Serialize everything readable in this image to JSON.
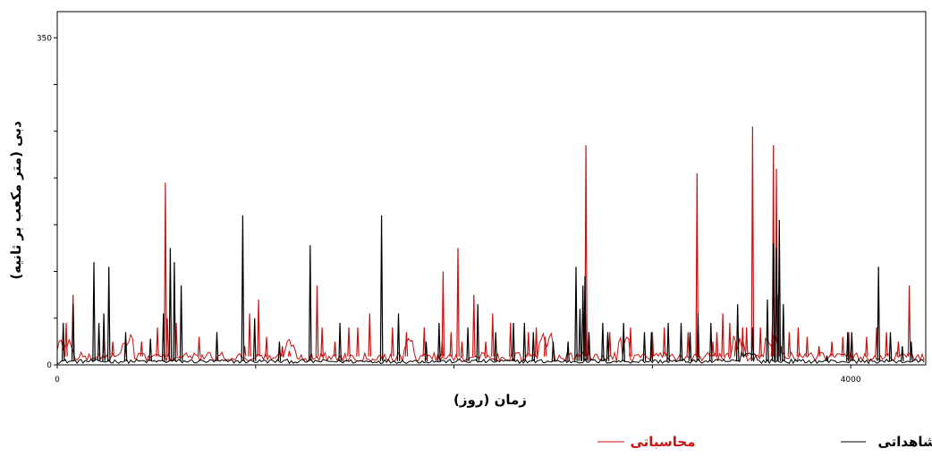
{
  "chart_data": {
    "type": "line",
    "xlabel": "زمان (روز)",
    "ylabel": "دبی (متر مکعب بر ثانیه)",
    "xlim": [
      0,
      4000
    ],
    "ylim": [
      0,
      378
    ],
    "x_tick_values": [
      0,
      1000,
      2000,
      3000,
      4000
    ],
    "x_tick_labels": [
      "0",
      "",
      "",
      "",
      "4000"
    ],
    "y_tick_values": [
      0,
      50,
      100,
      150,
      200,
      250,
      300,
      350
    ],
    "y_tick_labels": [
      "0",
      "",
      "",
      "",
      "",
      "",
      "",
      "350"
    ],
    "grid": false,
    "legend_position": "bottom",
    "series": [
      {
        "name": "مشاهداتی",
        "color": "#000000",
        "baseline": 4,
        "peaks": [
          [
            30,
            45
          ],
          [
            80,
            65
          ],
          [
            185,
            110
          ],
          [
            210,
            45
          ],
          [
            235,
            55
          ],
          [
            260,
            105
          ],
          [
            345,
            35
          ],
          [
            470,
            28
          ],
          [
            535,
            55
          ],
          [
            570,
            125
          ],
          [
            590,
            110
          ],
          [
            625,
            85
          ],
          [
            805,
            35
          ],
          [
            935,
            160
          ],
          [
            995,
            50
          ],
          [
            1120,
            25
          ],
          [
            1275,
            128
          ],
          [
            1425,
            45
          ],
          [
            1635,
            160
          ],
          [
            1720,
            55
          ],
          [
            1860,
            25
          ],
          [
            1925,
            45
          ],
          [
            2070,
            40
          ],
          [
            2120,
            65
          ],
          [
            2210,
            35
          ],
          [
            2300,
            45
          ],
          [
            2355,
            45
          ],
          [
            2400,
            35
          ],
          [
            2500,
            25
          ],
          [
            2575,
            25
          ],
          [
            2615,
            105
          ],
          [
            2635,
            60
          ],
          [
            2650,
            85
          ],
          [
            2660,
            95
          ],
          [
            2680,
            35
          ],
          [
            2750,
            45
          ],
          [
            2775,
            35
          ],
          [
            2855,
            45
          ],
          [
            2960,
            35
          ],
          [
            2995,
            35
          ],
          [
            3080,
            45
          ],
          [
            3145,
            45
          ],
          [
            3190,
            35
          ],
          [
            3230,
            55
          ],
          [
            3295,
            45
          ],
          [
            3430,
            65
          ],
          [
            3505,
            40
          ],
          [
            3580,
            70
          ],
          [
            3610,
            130
          ],
          [
            3625,
            125
          ],
          [
            3640,
            155
          ],
          [
            3660,
            65
          ],
          [
            3880,
            10
          ],
          [
            3985,
            35
          ],
          [
            4005,
            35
          ],
          [
            4140,
            105
          ],
          [
            4200,
            35
          ],
          [
            4260,
            20
          ],
          [
            4305,
            25
          ]
        ],
        "clusters": [
          [
            3450,
            3520,
            10
          ]
        ]
      },
      {
        "name": "محاسباتی",
        "color": "#cc1111",
        "baseline": 9,
        "peaks": [
          [
            45,
            45
          ],
          [
            80,
            75
          ],
          [
            235,
            25
          ],
          [
            280,
            25
          ],
          [
            345,
            20
          ],
          [
            425,
            25
          ],
          [
            505,
            40
          ],
          [
            545,
            195
          ],
          [
            555,
            50
          ],
          [
            600,
            45
          ],
          [
            715,
            30
          ],
          [
            945,
            20
          ],
          [
            970,
            55
          ],
          [
            1015,
            70
          ],
          [
            1055,
            30
          ],
          [
            1135,
            20
          ],
          [
            1170,
            15
          ],
          [
            1310,
            85
          ],
          [
            1335,
            40
          ],
          [
            1400,
            25
          ],
          [
            1470,
            40
          ],
          [
            1515,
            40
          ],
          [
            1575,
            55
          ],
          [
            1690,
            40
          ],
          [
            1760,
            35
          ],
          [
            1850,
            40
          ],
          [
            1940,
            25
          ],
          [
            1945,
            100
          ],
          [
            1985,
            35
          ],
          [
            2020,
            125
          ],
          [
            2040,
            25
          ],
          [
            2100,
            75
          ],
          [
            2160,
            25
          ],
          [
            2195,
            55
          ],
          [
            2285,
            45
          ],
          [
            2375,
            35
          ],
          [
            2415,
            40
          ],
          [
            2460,
            30
          ],
          [
            2665,
            235
          ],
          [
            2680,
            35
          ],
          [
            2785,
            35
          ],
          [
            2890,
            40
          ],
          [
            3000,
            35
          ],
          [
            3060,
            40
          ],
          [
            3180,
            35
          ],
          [
            3225,
            205
          ],
          [
            3305,
            25
          ],
          [
            3325,
            35
          ],
          [
            3355,
            55
          ],
          [
            3390,
            45
          ],
          [
            3420,
            25
          ],
          [
            3455,
            40
          ],
          [
            3475,
            40
          ],
          [
            3505,
            255
          ],
          [
            3545,
            40
          ],
          [
            3605,
            45
          ],
          [
            3610,
            235
          ],
          [
            3625,
            210
          ],
          [
            3635,
            75
          ],
          [
            3650,
            20
          ],
          [
            3690,
            35
          ],
          [
            3735,
            40
          ],
          [
            3780,
            30
          ],
          [
            3840,
            20
          ],
          [
            3905,
            25
          ],
          [
            3960,
            30
          ],
          [
            3990,
            35
          ],
          [
            4080,
            30
          ],
          [
            4130,
            40
          ],
          [
            4180,
            35
          ],
          [
            4240,
            25
          ],
          [
            4295,
            85
          ]
        ],
        "clusters": [
          [
            0,
            80,
            15
          ],
          [
            330,
            380,
            20
          ],
          [
            1150,
            1200,
            15
          ],
          [
            1750,
            1800,
            15
          ],
          [
            2430,
            2500,
            20
          ],
          [
            2830,
            2880,
            20
          ],
          [
            3400,
            3470,
            15
          ],
          [
            3570,
            3650,
            20
          ]
        ]
      }
    ]
  }
}
